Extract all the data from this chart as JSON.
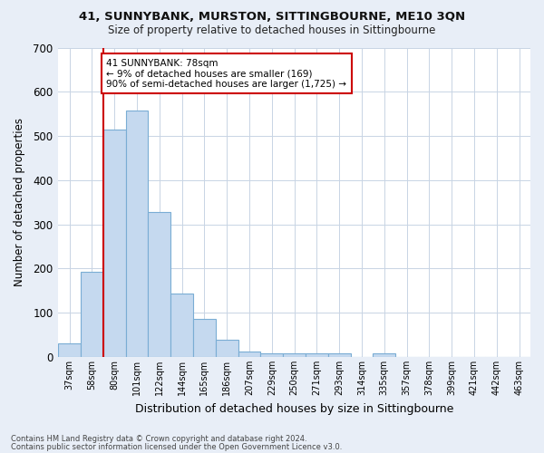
{
  "title1": "41, SUNNYBANK, MURSTON, SITTINGBOURNE, ME10 3QN",
  "title2": "Size of property relative to detached houses in Sittingbourne",
  "xlabel": "Distribution of detached houses by size in Sittingbourne",
  "ylabel": "Number of detached properties",
  "categories": [
    "37sqm",
    "58sqm",
    "80sqm",
    "101sqm",
    "122sqm",
    "144sqm",
    "165sqm",
    "186sqm",
    "207sqm",
    "229sqm",
    "250sqm",
    "271sqm",
    "293sqm",
    "314sqm",
    "335sqm",
    "357sqm",
    "378sqm",
    "399sqm",
    "421sqm",
    "442sqm",
    "463sqm"
  ],
  "values": [
    30,
    192,
    515,
    557,
    328,
    143,
    87,
    38,
    13,
    8,
    8,
    8,
    8,
    0,
    8,
    0,
    0,
    0,
    0,
    0,
    0
  ],
  "bar_color": "#c5d9ef",
  "bar_edge_color": "#7aadd4",
  "highlight_color": "#cc0000",
  "annotation_text": "41 SUNNYBANK: 78sqm\n← 9% of detached houses are smaller (169)\n90% of semi-detached houses are larger (1,725) →",
  "annotation_box_color": "#ffffff",
  "annotation_box_edge": "#cc0000",
  "footer1": "Contains HM Land Registry data © Crown copyright and database right 2024.",
  "footer2": "Contains public sector information licensed under the Open Government Licence v3.0.",
  "fig_bg_color": "#e8eef7",
  "plot_bg_color": "#ffffff",
  "grid_color": "#c8d4e4",
  "ylim": [
    0,
    700
  ],
  "yticks": [
    0,
    100,
    200,
    300,
    400,
    500,
    600,
    700
  ]
}
